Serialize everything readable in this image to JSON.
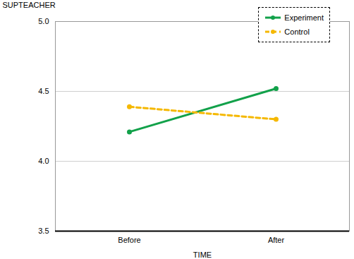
{
  "chart_data": {
    "type": "line",
    "x_label": "TIME",
    "y_label": "SUPTEACHER",
    "categories": [
      "Before",
      "After"
    ],
    "series": [
      {
        "name": "Experiment",
        "color": "#12a14a",
        "values": [
          4.21,
          4.52
        ],
        "line_style": "solid",
        "marker": "circle"
      },
      {
        "name": "Control",
        "color": "#f5b800",
        "values": [
          4.39,
          4.3
        ],
        "line_style": "dashed",
        "marker": "circle"
      }
    ],
    "ylim": [
      3.5,
      5
    ],
    "yticks": [
      3.5,
      4,
      4.5,
      5
    ],
    "grid": true,
    "legend": "upper right"
  }
}
